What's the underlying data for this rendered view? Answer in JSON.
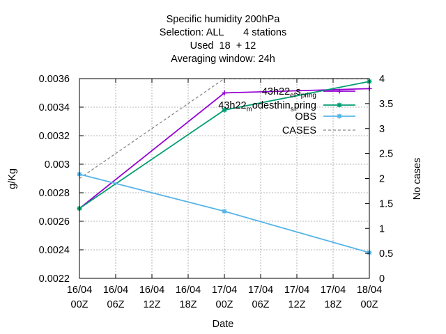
{
  "title_lines": [
    "Specific humidity 200hPa",
    "Selection: ALL       4 stations",
    "Used  18  + 12",
    "Averaging window: 24h"
  ],
  "chart_data": {
    "type": "line",
    "xlabel": "Date",
    "ylabel": "g/Kg",
    "y2label": "No cases",
    "x_ticks": [
      [
        "16/04",
        "00Z"
      ],
      [
        "16/04",
        "06Z"
      ],
      [
        "16/04",
        "12Z"
      ],
      [
        "16/04",
        "18Z"
      ],
      [
        "17/04",
        "00Z"
      ],
      [
        "17/04",
        "06Z"
      ],
      [
        "17/04",
        "12Z"
      ],
      [
        "17/04",
        "18Z"
      ],
      [
        "18/04",
        "00Z"
      ]
    ],
    "xlim_hours": [
      0,
      48
    ],
    "ylim": [
      0.0022,
      0.0036
    ],
    "y_ticks": [
      "0.0022",
      "0.0024",
      "0.0026",
      "0.0028",
      "0.003",
      "0.0032",
      "0.0034",
      "0.0036"
    ],
    "y2lim": [
      0,
      4
    ],
    "y2_ticks": [
      "0",
      "0.5",
      "1",
      "1.5",
      "2",
      "2.5",
      "3",
      "3.5",
      "4"
    ],
    "grid": true,
    "legend_position": "top-right",
    "series": [
      {
        "name": "43h22_ef_spring",
        "legend_parts": [
          "43h22",
          "ef",
          "s",
          "pring"
        ],
        "color": "#9400d3",
        "marker": "plus",
        "axis": "y",
        "x_hours": [
          0,
          24,
          48
        ],
        "values": [
          0.00269,
          0.0035,
          0.00353
        ]
      },
      {
        "name": "43h22_modesthin_spring",
        "legend_parts": [
          "43h22",
          "m",
          "odesthin",
          "s",
          "pring"
        ],
        "color": "#009e73",
        "marker": "star",
        "axis": "y",
        "x_hours": [
          0,
          24,
          48
        ],
        "values": [
          0.00269,
          0.00338,
          0.00358
        ]
      },
      {
        "name": "OBS",
        "color": "#56b4e9",
        "marker": "star",
        "axis": "y",
        "x_hours": [
          0,
          24,
          48
        ],
        "values": [
          0.00293,
          0.00267,
          0.00238
        ]
      },
      {
        "name": "CASES",
        "color": "#888888",
        "dashed": true,
        "axis": "y2",
        "x_hours": [
          0,
          24,
          48
        ],
        "values": [
          2,
          4,
          4
        ]
      }
    ]
  }
}
